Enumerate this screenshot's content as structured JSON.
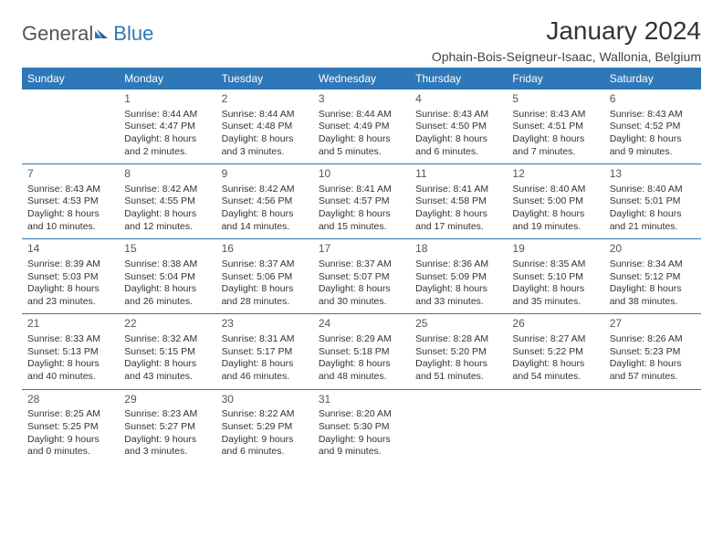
{
  "logo": {
    "part1": "General",
    "part2": "Blue"
  },
  "title": "January 2024",
  "subtitle": "Ophain-Bois-Seigneur-Isaac, Wallonia, Belgium",
  "colors": {
    "header_bg": "#2f78b7",
    "header_fg": "#ffffff",
    "rule": "#2f78b7",
    "text": "#333333",
    "daynum": "#555555",
    "logo_gray": "#555555",
    "logo_blue": "#2f78b7",
    "background": "#ffffff"
  },
  "dayHeaders": [
    "Sunday",
    "Monday",
    "Tuesday",
    "Wednesday",
    "Thursday",
    "Friday",
    "Saturday"
  ],
  "weeks": [
    [
      null,
      {
        "n": "1",
        "sr": "Sunrise: 8:44 AM",
        "ss": "Sunset: 4:47 PM",
        "dl1": "Daylight: 8 hours",
        "dl2": "and 2 minutes."
      },
      {
        "n": "2",
        "sr": "Sunrise: 8:44 AM",
        "ss": "Sunset: 4:48 PM",
        "dl1": "Daylight: 8 hours",
        "dl2": "and 3 minutes."
      },
      {
        "n": "3",
        "sr": "Sunrise: 8:44 AM",
        "ss": "Sunset: 4:49 PM",
        "dl1": "Daylight: 8 hours",
        "dl2": "and 5 minutes."
      },
      {
        "n": "4",
        "sr": "Sunrise: 8:43 AM",
        "ss": "Sunset: 4:50 PM",
        "dl1": "Daylight: 8 hours",
        "dl2": "and 6 minutes."
      },
      {
        "n": "5",
        "sr": "Sunrise: 8:43 AM",
        "ss": "Sunset: 4:51 PM",
        "dl1": "Daylight: 8 hours",
        "dl2": "and 7 minutes."
      },
      {
        "n": "6",
        "sr": "Sunrise: 8:43 AM",
        "ss": "Sunset: 4:52 PM",
        "dl1": "Daylight: 8 hours",
        "dl2": "and 9 minutes."
      }
    ],
    [
      {
        "n": "7",
        "sr": "Sunrise: 8:43 AM",
        "ss": "Sunset: 4:53 PM",
        "dl1": "Daylight: 8 hours",
        "dl2": "and 10 minutes."
      },
      {
        "n": "8",
        "sr": "Sunrise: 8:42 AM",
        "ss": "Sunset: 4:55 PM",
        "dl1": "Daylight: 8 hours",
        "dl2": "and 12 minutes."
      },
      {
        "n": "9",
        "sr": "Sunrise: 8:42 AM",
        "ss": "Sunset: 4:56 PM",
        "dl1": "Daylight: 8 hours",
        "dl2": "and 14 minutes."
      },
      {
        "n": "10",
        "sr": "Sunrise: 8:41 AM",
        "ss": "Sunset: 4:57 PM",
        "dl1": "Daylight: 8 hours",
        "dl2": "and 15 minutes."
      },
      {
        "n": "11",
        "sr": "Sunrise: 8:41 AM",
        "ss": "Sunset: 4:58 PM",
        "dl1": "Daylight: 8 hours",
        "dl2": "and 17 minutes."
      },
      {
        "n": "12",
        "sr": "Sunrise: 8:40 AM",
        "ss": "Sunset: 5:00 PM",
        "dl1": "Daylight: 8 hours",
        "dl2": "and 19 minutes."
      },
      {
        "n": "13",
        "sr": "Sunrise: 8:40 AM",
        "ss": "Sunset: 5:01 PM",
        "dl1": "Daylight: 8 hours",
        "dl2": "and 21 minutes."
      }
    ],
    [
      {
        "n": "14",
        "sr": "Sunrise: 8:39 AM",
        "ss": "Sunset: 5:03 PM",
        "dl1": "Daylight: 8 hours",
        "dl2": "and 23 minutes."
      },
      {
        "n": "15",
        "sr": "Sunrise: 8:38 AM",
        "ss": "Sunset: 5:04 PM",
        "dl1": "Daylight: 8 hours",
        "dl2": "and 26 minutes."
      },
      {
        "n": "16",
        "sr": "Sunrise: 8:37 AM",
        "ss": "Sunset: 5:06 PM",
        "dl1": "Daylight: 8 hours",
        "dl2": "and 28 minutes."
      },
      {
        "n": "17",
        "sr": "Sunrise: 8:37 AM",
        "ss": "Sunset: 5:07 PM",
        "dl1": "Daylight: 8 hours",
        "dl2": "and 30 minutes."
      },
      {
        "n": "18",
        "sr": "Sunrise: 8:36 AM",
        "ss": "Sunset: 5:09 PM",
        "dl1": "Daylight: 8 hours",
        "dl2": "and 33 minutes."
      },
      {
        "n": "19",
        "sr": "Sunrise: 8:35 AM",
        "ss": "Sunset: 5:10 PM",
        "dl1": "Daylight: 8 hours",
        "dl2": "and 35 minutes."
      },
      {
        "n": "20",
        "sr": "Sunrise: 8:34 AM",
        "ss": "Sunset: 5:12 PM",
        "dl1": "Daylight: 8 hours",
        "dl2": "and 38 minutes."
      }
    ],
    [
      {
        "n": "21",
        "sr": "Sunrise: 8:33 AM",
        "ss": "Sunset: 5:13 PM",
        "dl1": "Daylight: 8 hours",
        "dl2": "and 40 minutes."
      },
      {
        "n": "22",
        "sr": "Sunrise: 8:32 AM",
        "ss": "Sunset: 5:15 PM",
        "dl1": "Daylight: 8 hours",
        "dl2": "and 43 minutes."
      },
      {
        "n": "23",
        "sr": "Sunrise: 8:31 AM",
        "ss": "Sunset: 5:17 PM",
        "dl1": "Daylight: 8 hours",
        "dl2": "and 46 minutes."
      },
      {
        "n": "24",
        "sr": "Sunrise: 8:29 AM",
        "ss": "Sunset: 5:18 PM",
        "dl1": "Daylight: 8 hours",
        "dl2": "and 48 minutes."
      },
      {
        "n": "25",
        "sr": "Sunrise: 8:28 AM",
        "ss": "Sunset: 5:20 PM",
        "dl1": "Daylight: 8 hours",
        "dl2": "and 51 minutes."
      },
      {
        "n": "26",
        "sr": "Sunrise: 8:27 AM",
        "ss": "Sunset: 5:22 PM",
        "dl1": "Daylight: 8 hours",
        "dl2": "and 54 minutes."
      },
      {
        "n": "27",
        "sr": "Sunrise: 8:26 AM",
        "ss": "Sunset: 5:23 PM",
        "dl1": "Daylight: 8 hours",
        "dl2": "and 57 minutes."
      }
    ],
    [
      {
        "n": "28",
        "sr": "Sunrise: 8:25 AM",
        "ss": "Sunset: 5:25 PM",
        "dl1": "Daylight: 9 hours",
        "dl2": "and 0 minutes."
      },
      {
        "n": "29",
        "sr": "Sunrise: 8:23 AM",
        "ss": "Sunset: 5:27 PM",
        "dl1": "Daylight: 9 hours",
        "dl2": "and 3 minutes."
      },
      {
        "n": "30",
        "sr": "Sunrise: 8:22 AM",
        "ss": "Sunset: 5:29 PM",
        "dl1": "Daylight: 9 hours",
        "dl2": "and 6 minutes."
      },
      {
        "n": "31",
        "sr": "Sunrise: 8:20 AM",
        "ss": "Sunset: 5:30 PM",
        "dl1": "Daylight: 9 hours",
        "dl2": "and 9 minutes."
      },
      null,
      null,
      null
    ]
  ]
}
